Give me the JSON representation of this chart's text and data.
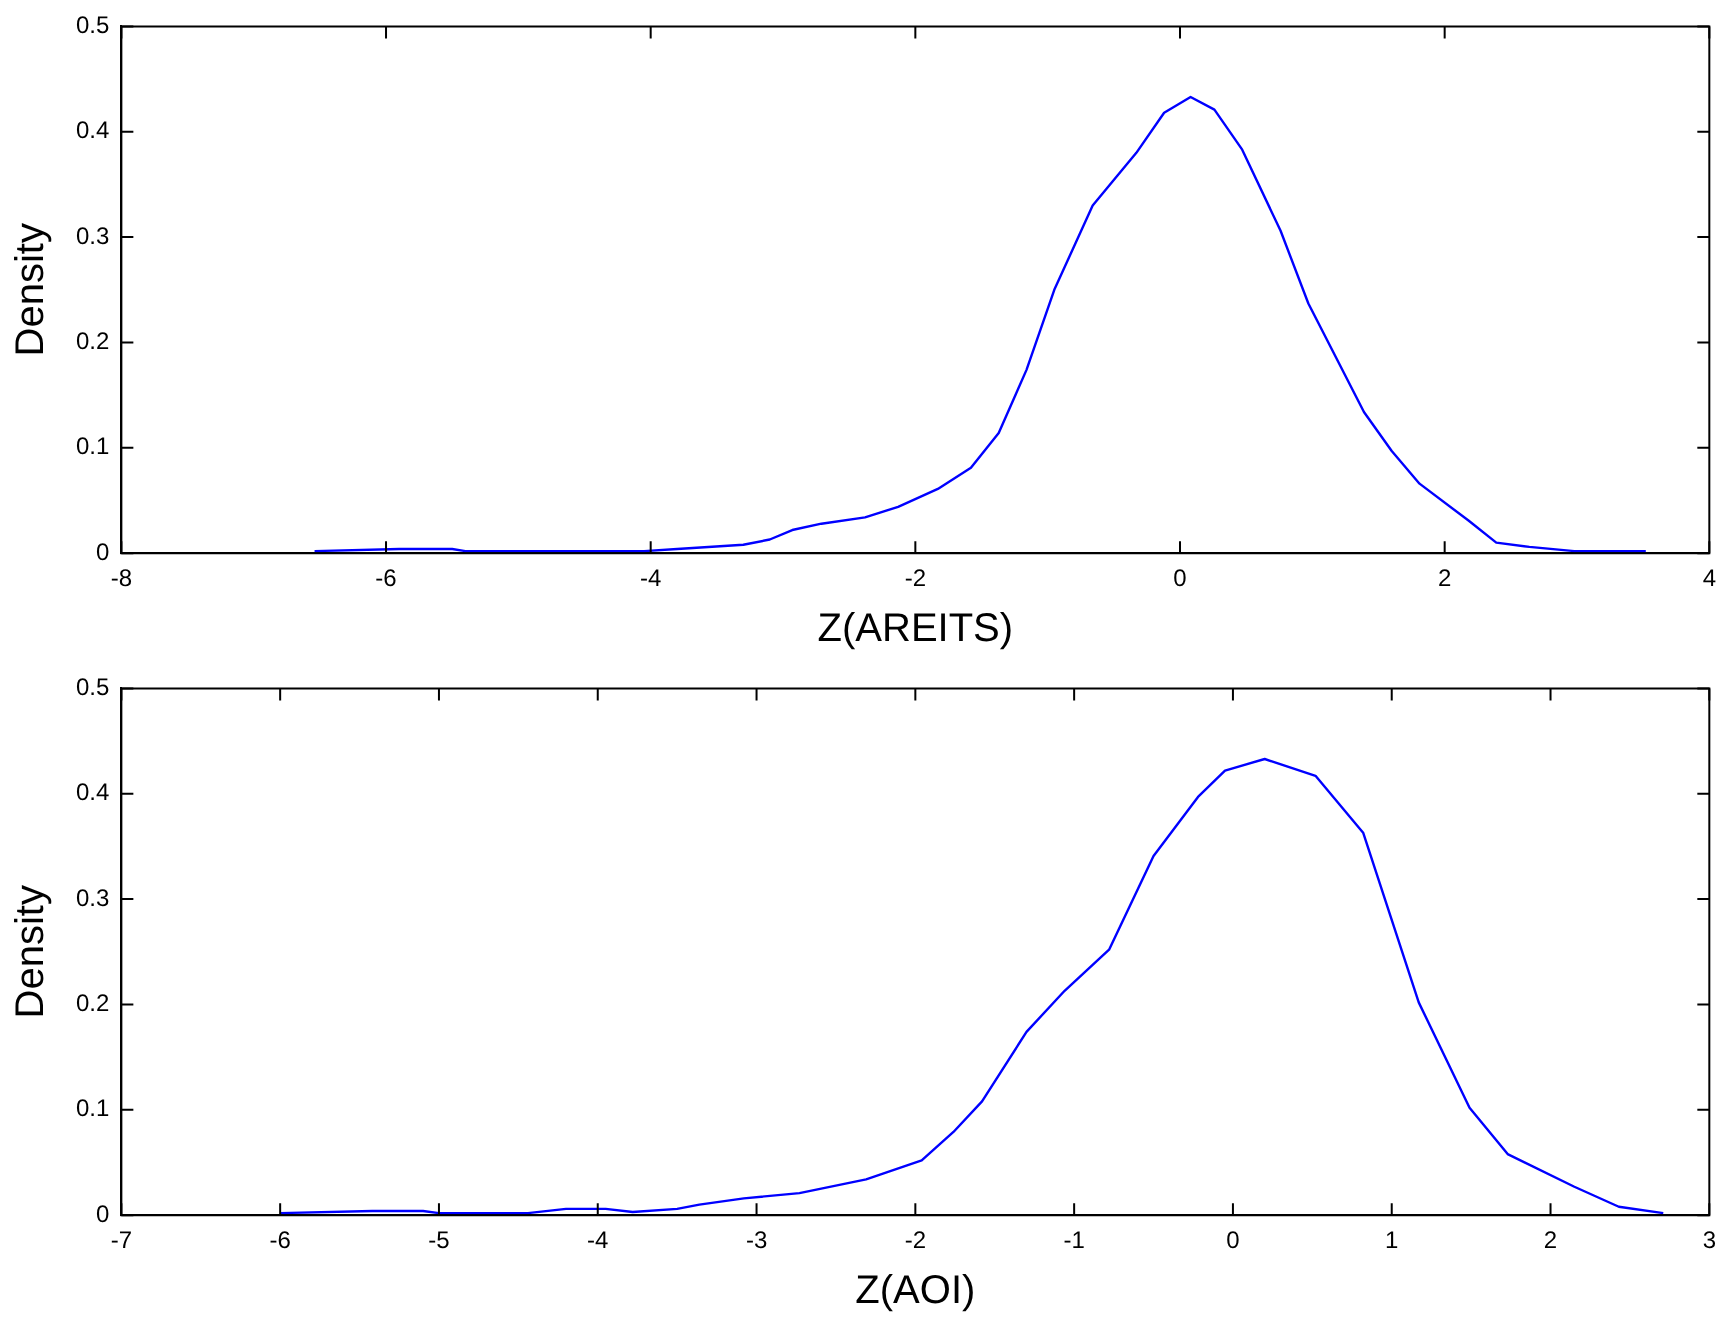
{
  "chart_data": [
    {
      "type": "line",
      "xlabel": "Z(AREITS)",
      "ylabel": "Density",
      "color": "#0000ff",
      "marker": "none",
      "line_style": "solid",
      "grid": false,
      "legend": false,
      "x": [
        -6.54,
        -5.9,
        -5.5,
        -5.4,
        -4.05,
        -3.8,
        -3.3,
        -3.1,
        -2.93,
        -2.71,
        -2.38,
        -2.13,
        -1.83,
        -1.58,
        -1.37,
        -1.16,
        -0.95,
        -0.66,
        -0.33,
        -0.12,
        0.08,
        0.26,
        0.47,
        0.76,
        0.97,
        1.39,
        1.6,
        1.81,
        2.18,
        2.39,
        2.64,
        2.98,
        3.52
      ],
      "values": [
        0.002,
        0.004,
        0.004,
        0.002,
        0.002,
        0.004,
        0.008,
        0.013,
        0.022,
        0.028,
        0.034,
        0.044,
        0.061,
        0.081,
        0.114,
        0.174,
        0.25,
        0.33,
        0.38,
        0.418,
        0.433,
        0.421,
        0.383,
        0.306,
        0.237,
        0.134,
        0.097,
        0.066,
        0.031,
        0.01,
        0.006,
        0.002,
        0.002
      ],
      "xlim": [
        -8,
        4
      ],
      "xticks": [
        -8,
        -6,
        -4,
        -2,
        0,
        2,
        4
      ],
      "ylim": [
        0,
        0.5
      ],
      "yticks": [
        0,
        0.1,
        0.2,
        0.3,
        0.4,
        0.5
      ]
    },
    {
      "type": "line",
      "xlabel": "Z(AOI)",
      "ylabel": "Density",
      "color": "#0000ff",
      "marker": "none",
      "line_style": "solid",
      "grid": false,
      "legend": false,
      "x": [
        -6.0,
        -5.42,
        -5.1,
        -5.0,
        -4.44,
        -4.2,
        -3.95,
        -3.78,
        -3.5,
        -3.36,
        -3.08,
        -2.73,
        -2.31,
        -1.96,
        -1.76,
        -1.58,
        -1.3,
        -1.06,
        -0.78,
        -0.5,
        -0.22,
        -0.05,
        0.2,
        0.52,
        0.82,
        1.17,
        1.49,
        1.73,
        2.15,
        2.43,
        2.71
      ],
      "values": [
        0.002,
        0.004,
        0.004,
        0.002,
        0.002,
        0.006,
        0.006,
        0.003,
        0.006,
        0.01,
        0.016,
        0.021,
        0.034,
        0.052,
        0.079,
        0.108,
        0.174,
        0.213,
        0.252,
        0.341,
        0.397,
        0.422,
        0.433,
        0.417,
        0.363,
        0.202,
        0.102,
        0.058,
        0.027,
        0.008,
        0.002
      ],
      "xlim": [
        -7,
        3
      ],
      "xticks": [
        -7,
        -6,
        -5,
        -4,
        -3,
        -2,
        -1,
        0,
        1,
        2,
        3
      ],
      "ylim": [
        0,
        0.5
      ],
      "yticks": [
        0,
        0.1,
        0.2,
        0.3,
        0.4,
        0.5
      ]
    }
  ]
}
